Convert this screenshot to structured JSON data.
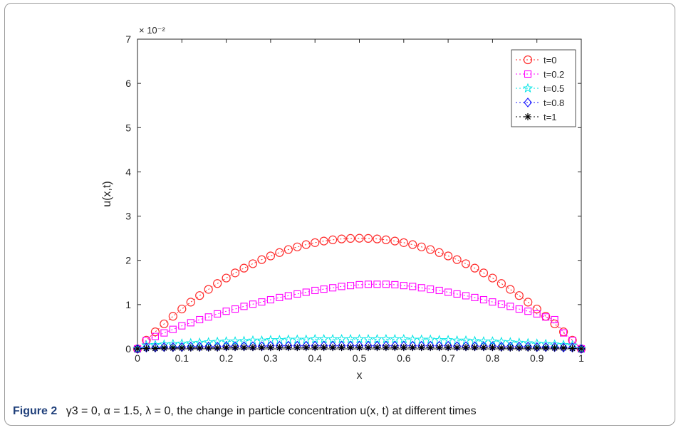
{
  "caption": {
    "label": "Figure 2",
    "text": "γ3 = 0, α = 1.5, λ = 0, the change in particle concentration u(x, t) at different times"
  },
  "chart_data": {
    "type": "line",
    "xlabel": "x",
    "ylabel": "u(x,t)",
    "y_exponent_label": "× 10⁻²",
    "xlim": [
      0,
      1
    ],
    "ylim": [
      0,
      0.07
    ],
    "x_ticks": [
      "0",
      "0.1",
      "0.2",
      "0.3",
      "0.4",
      "0.5",
      "0.6",
      "0.7",
      "0.8",
      "0.9",
      "1"
    ],
    "y_ticks": [
      "0",
      "1",
      "2",
      "3",
      "4",
      "5",
      "6",
      "7"
    ],
    "x": [
      0,
      0.02,
      0.04,
      0.06,
      0.08,
      0.1,
      0.12,
      0.14,
      0.16,
      0.18,
      0.2,
      0.22,
      0.24,
      0.26,
      0.28,
      0.3,
      0.32,
      0.34,
      0.36,
      0.38,
      0.4,
      0.42,
      0.44,
      0.46,
      0.48,
      0.5,
      0.52,
      0.54,
      0.56,
      0.58,
      0.6,
      0.62,
      0.64,
      0.66,
      0.68,
      0.7,
      0.72,
      0.74,
      0.76,
      0.78,
      0.8,
      0.82,
      0.84,
      0.86,
      0.88,
      0.9,
      0.92,
      0.94,
      0.96,
      0.98,
      1
    ],
    "grid": false,
    "legend_position": "top-right",
    "series": [
      {
        "name": "t=0",
        "color": "#ff2a2a",
        "marker": "circle",
        "values": [
          0,
          0.00196,
          0.00384,
          0.00564,
          0.00736,
          0.009,
          0.01056,
          0.01204,
          0.01344,
          0.01476,
          0.016,
          0.01716,
          0.01824,
          0.01924,
          0.02016,
          0.021,
          0.02176,
          0.02244,
          0.02304,
          0.02356,
          0.024,
          0.02436,
          0.02464,
          0.02484,
          0.02496,
          0.025,
          0.02496,
          0.02484,
          0.02464,
          0.02436,
          0.024,
          0.02356,
          0.02304,
          0.02244,
          0.02176,
          0.021,
          0.02016,
          0.01924,
          0.01824,
          0.01716,
          0.016,
          0.01476,
          0.01344,
          0.01204,
          0.01056,
          0.009,
          0.00736,
          0.00564,
          0.00384,
          0.00196,
          0
        ]
      },
      {
        "name": "t=0.2",
        "color": "#ff00ff",
        "marker": "square",
        "values": [
          0,
          0.0019,
          0.0028,
          0.0036,
          0.0044,
          0.0052,
          0.0059,
          0.0066,
          0.0072,
          0.0079,
          0.0085,
          0.009,
          0.0096,
          0.0101,
          0.0106,
          0.0111,
          0.0116,
          0.012,
          0.0124,
          0.0128,
          0.0132,
          0.0135,
          0.0138,
          0.0141,
          0.0143,
          0.0145,
          0.0146,
          0.0146,
          0.0146,
          0.0145,
          0.0143,
          0.0141,
          0.0138,
          0.0135,
          0.0132,
          0.0128,
          0.0124,
          0.012,
          0.0116,
          0.0111,
          0.0106,
          0.0101,
          0.0096,
          0.009,
          0.0085,
          0.0079,
          0.0072,
          0.0066,
          0.0036,
          0.0019,
          0
        ]
      },
      {
        "name": "t=0.5",
        "color": "#00e5e5",
        "marker": "star",
        "values": [
          0,
          0.0008,
          0.0009,
          0.001,
          0.0011,
          0.0012,
          0.0013,
          0.0014,
          0.0015,
          0.0016,
          0.0017,
          0.0017,
          0.0018,
          0.0019,
          0.0019,
          0.002,
          0.002,
          0.0021,
          0.0021,
          0.0021,
          0.0022,
          0.0022,
          0.0022,
          0.0022,
          0.0022,
          0.0022,
          0.0022,
          0.0022,
          0.0022,
          0.0022,
          0.0022,
          0.0021,
          0.0021,
          0.0021,
          0.002,
          0.002,
          0.0019,
          0.0019,
          0.0018,
          0.0017,
          0.0017,
          0.0016,
          0.0015,
          0.0014,
          0.0013,
          0.0012,
          0.0011,
          0.001,
          0.0009,
          0.0008,
          0
        ]
      },
      {
        "name": "t=0.8",
        "color": "#1a1aff",
        "marker": "diamond",
        "values": [
          0,
          0.0003,
          0.0003,
          0.0004,
          0.0004,
          0.0004,
          0.0005,
          0.0005,
          0.0005,
          0.0005,
          0.0006,
          0.0006,
          0.0006,
          0.0006,
          0.0006,
          0.0007,
          0.0007,
          0.0007,
          0.0007,
          0.0007,
          0.0007,
          0.0007,
          0.0007,
          0.0007,
          0.0007,
          0.0007,
          0.0007,
          0.0007,
          0.0007,
          0.0007,
          0.0007,
          0.0007,
          0.0007,
          0.0007,
          0.0007,
          0.0007,
          0.0006,
          0.0006,
          0.0006,
          0.0006,
          0.0006,
          0.0005,
          0.0005,
          0.0005,
          0.0005,
          0.0004,
          0.0004,
          0.0004,
          0.0003,
          0.0003,
          0
        ]
      },
      {
        "name": "t=1",
        "color": "#000000",
        "marker": "asterisk",
        "values": [
          0,
          0.0001,
          0.0001,
          0.0002,
          0.0002,
          0.0002,
          0.0002,
          0.0002,
          0.0002,
          0.0002,
          0.0003,
          0.0003,
          0.0003,
          0.0003,
          0.0003,
          0.0003,
          0.0003,
          0.0003,
          0.0003,
          0.0003,
          0.0003,
          0.0003,
          0.0003,
          0.0003,
          0.0003,
          0.0003,
          0.0003,
          0.0003,
          0.0003,
          0.0003,
          0.0003,
          0.0003,
          0.0003,
          0.0003,
          0.0003,
          0.0003,
          0.0003,
          0.0003,
          0.0003,
          0.0003,
          0.0003,
          0.0002,
          0.0002,
          0.0002,
          0.0002,
          0.0002,
          0.0002,
          0.0002,
          0.0002,
          0.0001,
          0
        ]
      }
    ]
  }
}
